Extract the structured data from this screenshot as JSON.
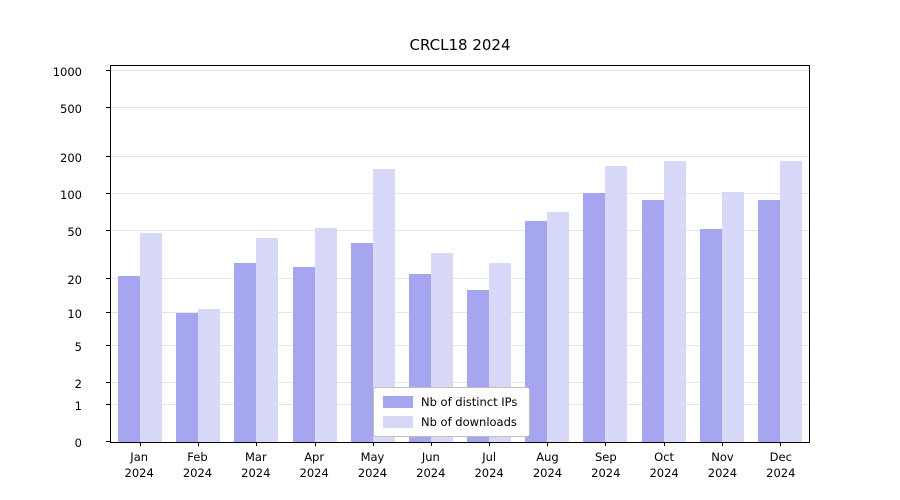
{
  "title": "CRCL18 2024",
  "legend": {
    "items": [
      {
        "label": "Nb of distinct IPs",
        "color": "#a5a5f0"
      },
      {
        "label": "Nb of downloads",
        "color": "#d8d8f8"
      }
    ]
  },
  "axes": {
    "y_tick_labels": [
      "0",
      "1",
      "2",
      "5",
      "10",
      "20",
      "50",
      "100",
      "200",
      "500",
      "1000"
    ],
    "x_tick_labels": [
      "Jan 2024",
      "Feb 2024",
      "Mar 2024",
      "Apr 2024",
      "May 2024",
      "Jun 2024",
      "Jul 2024",
      "Aug 2024",
      "Sep 2024",
      "Oct 2024",
      "Nov 2024",
      "Dec 2024"
    ]
  },
  "chart_data": {
    "type": "bar",
    "title": "CRCL18 2024",
    "categories": [
      "Jan 2024",
      "Feb 2024",
      "Mar 2024",
      "Apr 2024",
      "May 2024",
      "Jun 2024",
      "Jul 2024",
      "Aug 2024",
      "Sep 2024",
      "Oct 2024",
      "Nov 2024",
      "Dec 2024"
    ],
    "series": [
      {
        "name": "Nb of distinct IPs",
        "color": "#a5a5f0",
        "values": [
          21,
          10,
          27,
          25,
          40,
          22,
          16,
          60,
          102,
          90,
          52,
          90
        ]
      },
      {
        "name": "Nb of downloads",
        "color": "#d8d8f8",
        "values": [
          48,
          11,
          44,
          53,
          160,
          33,
          27,
          72,
          170,
          185,
          105,
          185
        ]
      }
    ],
    "yscale": "log1p",
    "ylim": [
      0,
      1000
    ],
    "y_ticks": [
      0,
      1,
      2,
      5,
      10,
      20,
      50,
      100,
      200,
      500,
      1000
    ],
    "grid": "horizontal",
    "legend_position": "lower center",
    "xlabel": "",
    "ylabel": ""
  }
}
